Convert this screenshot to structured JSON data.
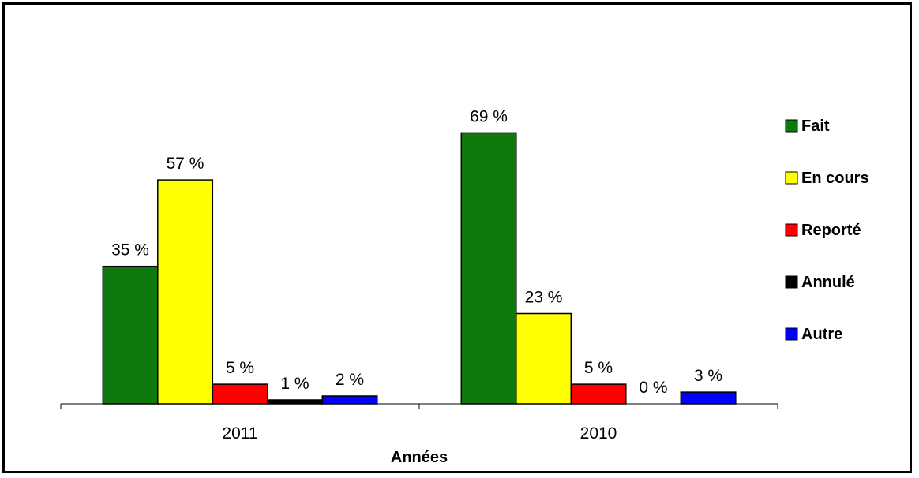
{
  "chart_data": {
    "type": "bar",
    "categories": [
      "2011",
      "2010"
    ],
    "series": [
      {
        "name": "Fait",
        "color": "#0e7a0e",
        "values": [
          35,
          69
        ],
        "labels": [
          "35 %",
          "69 %"
        ]
      },
      {
        "name": "En cours",
        "color": "#ffff00",
        "values": [
          57,
          23
        ],
        "labels": [
          "57 %",
          "23 %"
        ]
      },
      {
        "name": "Reporté",
        "color": "#ff0000",
        "values": [
          5,
          5
        ],
        "labels": [
          "5 %",
          "5 %"
        ]
      },
      {
        "name": "Annulé",
        "color": "#000000",
        "values": [
          1,
          0
        ],
        "labels": [
          "1 %",
          "0 %"
        ]
      },
      {
        "name": "Autre",
        "color": "#0000ff",
        "values": [
          2,
          3
        ],
        "labels": [
          "2 %",
          "3 %"
        ]
      }
    ],
    "xlabel": "Années",
    "ylabel": "",
    "ylim": [
      0,
      100
    ],
    "grid": false,
    "legend_position": "right"
  }
}
